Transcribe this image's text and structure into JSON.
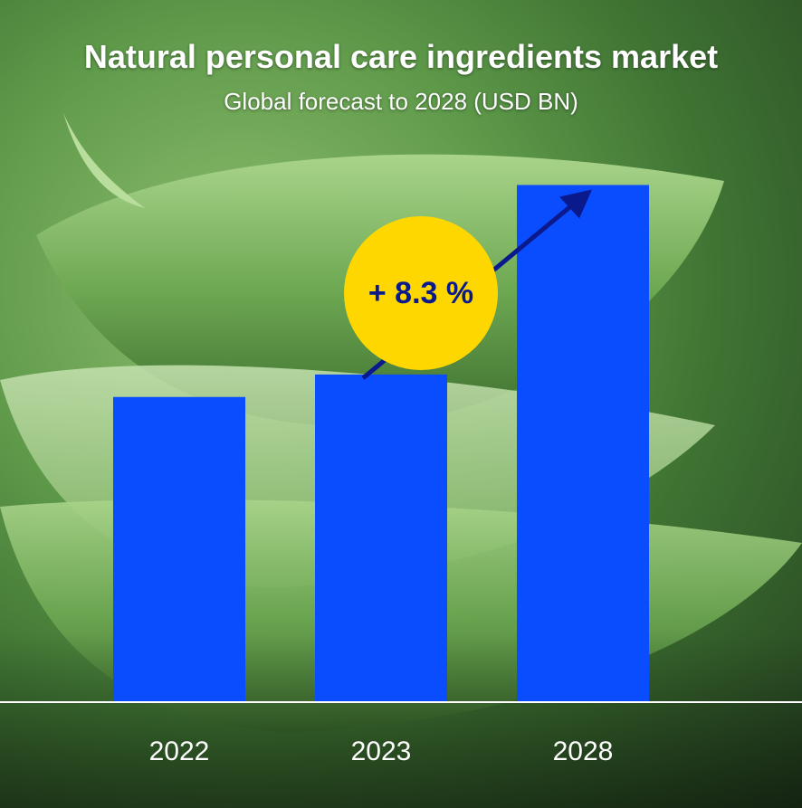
{
  "title": "Natural personal care ingredients market",
  "subtitle": "Global forecast to 2028 (USD BN)",
  "colors": {
    "bar": "#0a4dff",
    "badge": "#ffd700",
    "badge_text": "#0a1a8c",
    "arrow": "#0a1a8c",
    "axis": "#ffffff",
    "text": "#ffffff"
  },
  "badge": {
    "label": "+ 8.3 %"
  },
  "chart_data": {
    "type": "bar",
    "categories": [
      "2022",
      "2023",
      "2028"
    ],
    "values": [
      19.0,
      20.4,
      32.2
    ],
    "ylim": [
      0,
      40
    ],
    "grid": false,
    "legend": "none",
    "annotation": "+ 8.3 %"
  }
}
